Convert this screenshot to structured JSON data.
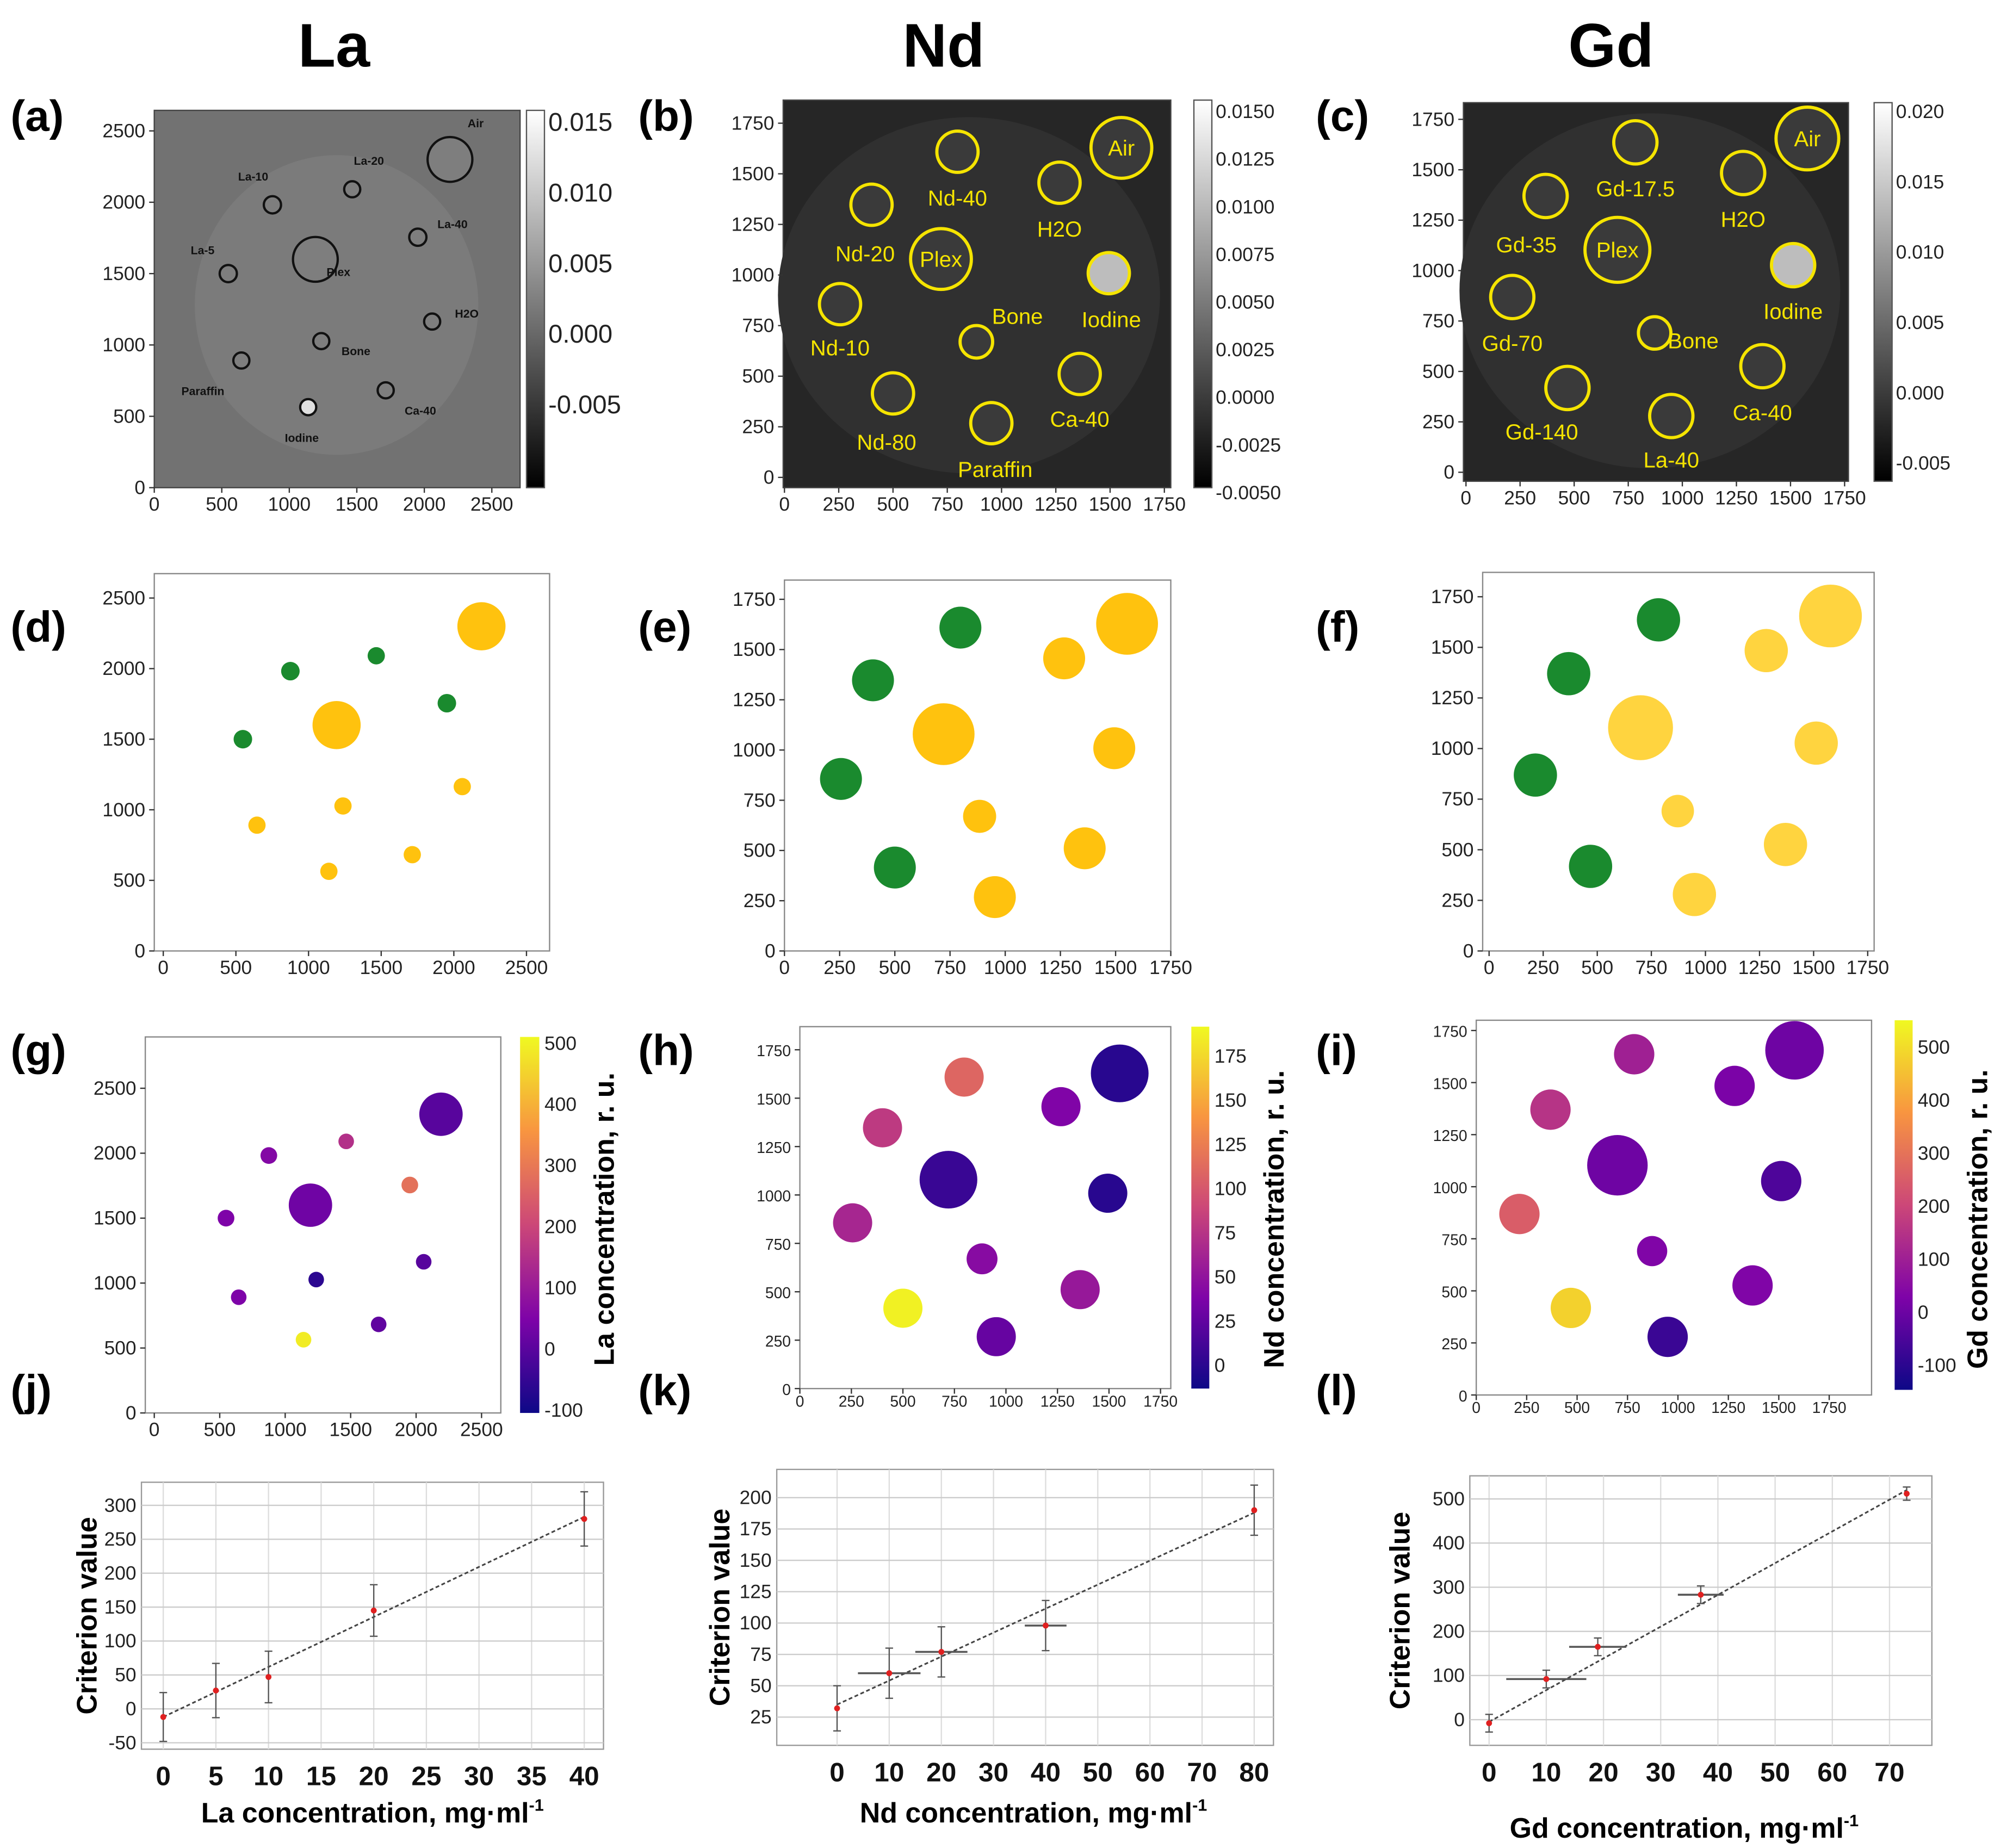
{
  "columns": [
    {
      "title": "La",
      "cbar_label": "La concentration, r. u.",
      "xlabel": "La concentration, mg·ml",
      "xlabel_sup": "-1"
    },
    {
      "title": "Nd",
      "cbar_label": "Nd concentration, r. u.",
      "xlabel": "Nd concentration, mg·ml",
      "xlabel_sup": "-1"
    },
    {
      "title": "Gd",
      "cbar_label": "Gd concentration, r. u.",
      "xlabel": "Gd concentration, mg·ml",
      "xlabel_sup": "-1"
    }
  ],
  "panel_labels": [
    "(a)",
    "(b)",
    "(c)",
    "(d)",
    "(e)",
    "(f)",
    "(g)",
    "(h)",
    "(i)",
    "(j)",
    "(k)",
    "(l)"
  ],
  "colors": {
    "contrast_insert": "#1a8a2e",
    "other_insert": "#ffc20e",
    "roi_outline_b_c": "#f5e400",
    "errorbar_point": "#e02020"
  },
  "chart_data": {
    "type": "multi-panel",
    "phantoms": [
      {
        "element": "La",
        "xticks": [
          0,
          500,
          1000,
          1500,
          2000,
          2500
        ],
        "yticks": [
          0,
          500,
          1000,
          1500,
          2000,
          2500
        ],
        "ct_cbar_ticks": [
          "0.015",
          "0.010",
          "0.005",
          "0.000",
          "-0.005"
        ],
        "ct_cbar_range": [
          -0.007,
          0.016
        ],
        "conc_cbar_ticks": [
          "500",
          "400",
          "300",
          "200",
          "100",
          "0",
          "-100"
        ],
        "conc_range": [
          -100,
          500
        ],
        "inserts": [
          {
            "name": "Air",
            "x": 2190,
            "y": 2300,
            "r": 195,
            "contrast": false,
            "conc": 0
          },
          {
            "name": "La-10",
            "x": 875,
            "y": 1982,
            "r": 75,
            "contrast": true,
            "conc": 60
          },
          {
            "name": "La-20",
            "x": 1466,
            "y": 2091,
            "r": 70,
            "contrast": true,
            "conc": 150
          },
          {
            "name": "La-40",
            "x": 1952,
            "y": 1755,
            "r": 75,
            "contrast": true,
            "conc": 280
          },
          {
            "name": "Plex",
            "x": 1193,
            "y": 1600,
            "r": 195,
            "contrast": false,
            "conc": 30
          },
          {
            "name": "La-5",
            "x": 548,
            "y": 1500,
            "r": 75,
            "contrast": true,
            "conc": 50
          },
          {
            "name": "H2O",
            "x": 2058,
            "y": 1164,
            "r": 70,
            "contrast": false,
            "conc": 0
          },
          {
            "name": "Bone",
            "x": 1237,
            "y": 1027,
            "r": 70,
            "contrast": false,
            "conc": -60
          },
          {
            "name": "Paraffin",
            "x": 645,
            "y": 891,
            "r": 70,
            "contrast": false,
            "conc": 50
          },
          {
            "name": "Ca-40",
            "x": 1714,
            "y": 682,
            "r": 70,
            "contrast": false,
            "conc": 10
          },
          {
            "name": "Iodine",
            "x": 1140,
            "y": 564,
            "r": 70,
            "contrast": false,
            "conc": 480
          }
        ]
      },
      {
        "element": "Nd",
        "xticks": [
          0,
          250,
          500,
          750,
          1000,
          1250,
          1500,
          1750
        ],
        "yticks": [
          0,
          250,
          500,
          750,
          1000,
          1250,
          1500,
          1750
        ],
        "ct_cbar_ticks": [
          "0.0150",
          "0.0125",
          "0.0100",
          "0.0075",
          "0.0050",
          "0.0025",
          "0.0000",
          "-0.0025",
          "-0.0050"
        ],
        "ct_cbar_range": [
          -0.005,
          0.015
        ],
        "conc_cbar_ticks": [
          "175",
          "150",
          "125",
          "100",
          "75",
          "50",
          "25",
          "0"
        ],
        "conc_range": [
          -12,
          192
        ],
        "inserts": [
          {
            "name": "Air",
            "x": 1552,
            "y": 1628,
            "r": 140,
            "contrast": false,
            "conc": 0
          },
          {
            "name": "Nd-40",
            "x": 797,
            "y": 1609,
            "r": 95,
            "contrast": true,
            "conc": 110
          },
          {
            "name": "H2O",
            "x": 1267,
            "y": 1456,
            "r": 95,
            "contrast": false,
            "conc": 40
          },
          {
            "name": "Nd-20",
            "x": 401,
            "y": 1347,
            "r": 95,
            "contrast": true,
            "conc": 80
          },
          {
            "name": "Plex",
            "x": 721,
            "y": 1079,
            "r": 140,
            "contrast": false,
            "conc": 8
          },
          {
            "name": "Iodine",
            "x": 1494,
            "y": 1009,
            "r": 95,
            "contrast": false,
            "conc": 0
          },
          {
            "name": "Nd-10",
            "x": 256,
            "y": 856,
            "r": 95,
            "contrast": true,
            "conc": 65
          },
          {
            "name": "Bone",
            "x": 884,
            "y": 670,
            "r": 75,
            "contrast": false,
            "conc": 45
          },
          {
            "name": "Ca-40",
            "x": 1360,
            "y": 511,
            "r": 95,
            "contrast": false,
            "conc": 55
          },
          {
            "name": "Nd-80",
            "x": 500,
            "y": 415,
            "r": 95,
            "contrast": true,
            "conc": 188
          },
          {
            "name": "Paraffin",
            "x": 953,
            "y": 268,
            "r": 95,
            "contrast": false,
            "conc": 28
          }
        ]
      },
      {
        "element": "Gd",
        "xticks": [
          0,
          250,
          500,
          750,
          1000,
          1250,
          1500,
          1750
        ],
        "yticks": [
          0,
          250,
          500,
          750,
          1000,
          1250,
          1500,
          1750
        ],
        "ct_cbar_ticks": [
          "0.020",
          "0.015",
          "0.010",
          "0.005",
          "0.000",
          "-0.005"
        ],
        "ct_cbar_range": [
          -0.007,
          0.021
        ],
        "conc_cbar_ticks": [
          "500",
          "400",
          "300",
          "200",
          "100",
          "0",
          "-100"
        ],
        "conc_range": [
          -150,
          550
        ],
        "inserts": [
          {
            "name": "Air",
            "x": 1578,
            "y": 1655,
            "r": 145,
            "contrast": false,
            "conc": 0
          },
          {
            "name": "Gd-17.5",
            "x": 783,
            "y": 1636,
            "r": 100,
            "contrast": true,
            "conc": 100
          },
          {
            "name": "H2O",
            "x": 1281,
            "y": 1484,
            "r": 100,
            "contrast": false,
            "conc": 20
          },
          {
            "name": "Gd-35",
            "x": 368,
            "y": 1370,
            "r": 100,
            "contrast": true,
            "conc": 150
          },
          {
            "name": "Plex",
            "x": 700,
            "y": 1103,
            "r": 150,
            "contrast": false,
            "conc": 0
          },
          {
            "name": "Iodine",
            "x": 1512,
            "y": 1027,
            "r": 100,
            "contrast": false,
            "conc": -50
          },
          {
            "name": "Gd-70",
            "x": 214,
            "y": 869,
            "r": 100,
            "contrast": true,
            "conc": 250
          },
          {
            "name": "Bone",
            "x": 872,
            "y": 691,
            "r": 75,
            "contrast": false,
            "conc": 30
          },
          {
            "name": "Ca-40",
            "x": 1370,
            "y": 526,
            "r": 100,
            "contrast": false,
            "conc": 30
          },
          {
            "name": "Gd-140",
            "x": 469,
            "y": 418,
            "r": 100,
            "contrast": true,
            "conc": 480
          },
          {
            "name": "La-40",
            "x": 949,
            "y": 279,
            "r": 100,
            "contrast": false,
            "conc": -80
          }
        ]
      }
    ],
    "calibration": [
      {
        "type": "scatter",
        "ylabel": "Criterion value",
        "x": [
          0,
          5,
          10,
          20,
          40
        ],
        "y": [
          -12,
          27,
          47,
          145,
          280
        ],
        "yerr": [
          36,
          40,
          38,
          38,
          40
        ],
        "xerr": [
          0,
          0,
          0,
          0,
          0
        ],
        "fit": [
          [
            0,
            -12
          ],
          [
            40,
            283
          ]
        ],
        "xticks": [
          0,
          5,
          10,
          15,
          20,
          25,
          30,
          35,
          40
        ],
        "yticks": [
          -50,
          0,
          50,
          100,
          150,
          200,
          250,
          300
        ],
        "xlim": [
          -1,
          42
        ],
        "ylim": [
          -60,
          335
        ]
      },
      {
        "type": "scatter",
        "ylabel": "Criterion value",
        "x": [
          0,
          10,
          20,
          40,
          80
        ],
        "y": [
          32,
          60,
          77,
          98,
          190
        ],
        "yerr": [
          18,
          20,
          20,
          20,
          20
        ],
        "xerr": [
          0,
          6,
          5,
          4,
          0
        ],
        "fit": [
          [
            0,
            35
          ],
          [
            80,
            188
          ]
        ],
        "xticks": [
          0,
          10,
          20,
          30,
          40,
          50,
          60,
          70,
          80
        ],
        "yticks": [
          25,
          50,
          75,
          100,
          125,
          150,
          175,
          200
        ],
        "xlim": [
          -4,
          84
        ],
        "ylim": [
          3,
          222
        ]
      },
      {
        "type": "scatter",
        "ylabel": "Criterion value",
        "x": [
          0,
          10,
          19,
          37,
          73
        ],
        "y": [
          -8,
          92,
          165,
          283,
          512
        ],
        "yerr": [
          20,
          20,
          20,
          20,
          15
        ],
        "xerr": [
          0,
          7,
          5,
          4,
          0
        ],
        "fit": [
          [
            0,
            -5
          ],
          [
            73,
            520
          ]
        ],
        "xticks": [
          0,
          10,
          20,
          30,
          40,
          50,
          60,
          70
        ],
        "yticks": [
          0,
          100,
          200,
          300,
          400,
          500
        ],
        "xlim": [
          -3,
          78
        ],
        "ylim": [
          -60,
          555
        ]
      }
    ]
  }
}
